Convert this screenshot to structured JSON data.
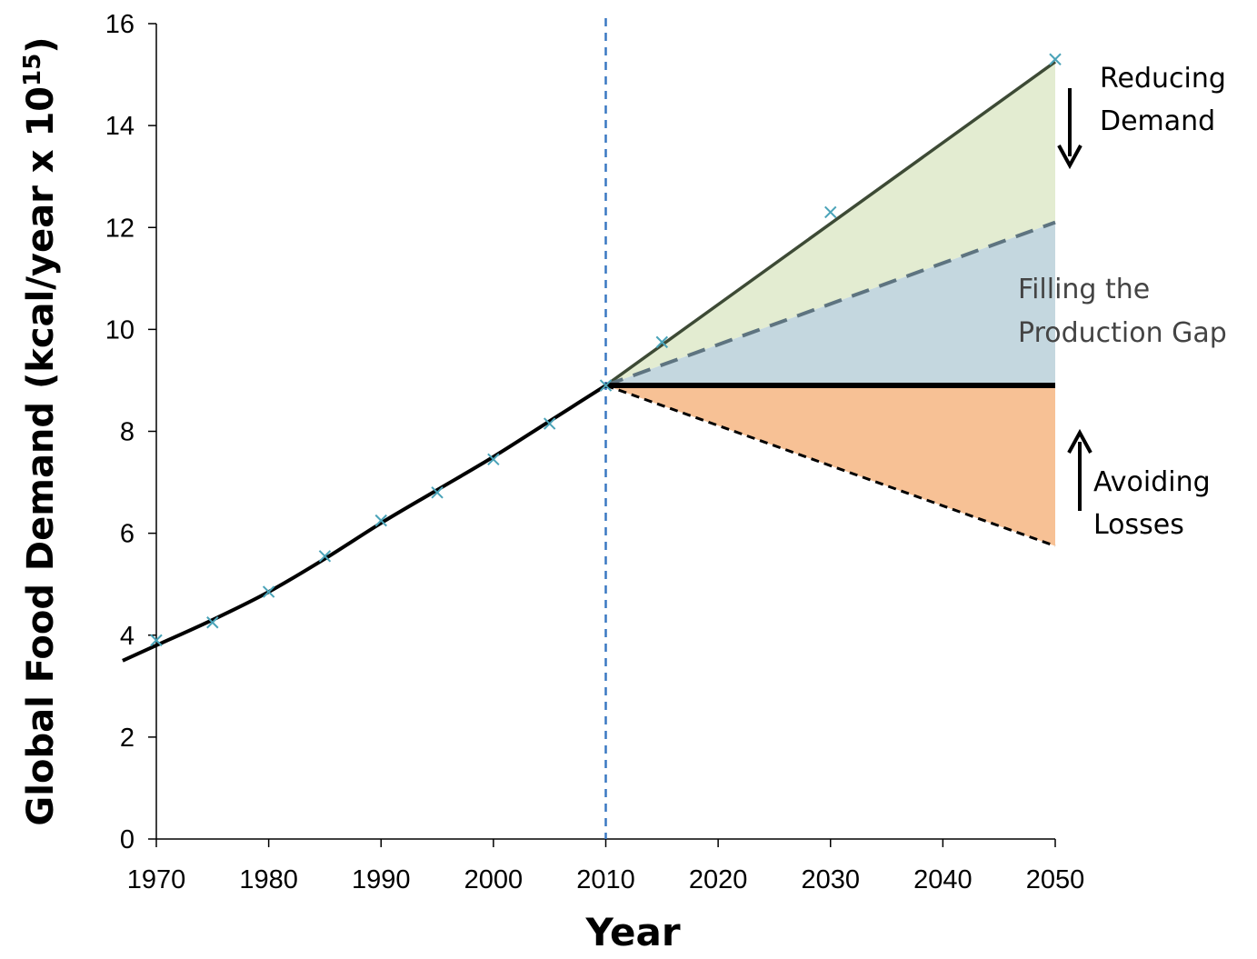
{
  "chart_data": {
    "type": "line",
    "xlabel": "Year",
    "ylabel": "Global Food Demand (kcal/year x 10",
    "ylabel_superscript": "15",
    "ylabel_close": ")",
    "xlim": [
      1970,
      2050
    ],
    "ylim": [
      0,
      16
    ],
    "xticks": [
      1970,
      1980,
      1990,
      2000,
      2010,
      2020,
      2030,
      2040,
      2050
    ],
    "yticks": [
      0,
      2,
      4,
      6,
      8,
      10,
      12,
      14,
      16
    ],
    "reference_line_x": 2010,
    "colors": {
      "trend": "#000000",
      "markers": "#4aa3b8",
      "reference": "#3a78c2",
      "reducing_demand_band": "#e3ecd1",
      "production_gap_band": "#c4d7df",
      "avoiding_losses_band": "#f7c195",
      "dashed_gap_line": "#5e7480",
      "demand_line": "#3d4a35"
    },
    "series": [
      {
        "x": [
          1967,
          1970,
          1975,
          1980,
          1985,
          1990,
          1995,
          2000,
          2005,
          2010
        ],
        "y": [
          3.5,
          3.8,
          4.3,
          4.85,
          5.5,
          6.2,
          6.85,
          7.5,
          8.2,
          8.9
        ]
      },
      {
        "x": [
          1970,
          1975,
          1980,
          1985,
          1990,
          1995,
          2000,
          2005,
          2010,
          2015,
          2030,
          2050
        ],
        "y": [
          3.9,
          4.25,
          4.85,
          5.55,
          6.25,
          6.8,
          7.45,
          8.15,
          8.9,
          9.75,
          12.3,
          15.3
        ]
      },
      {
        "x": [
          2010,
          2050
        ],
        "y": [
          8.9,
          15.25
        ]
      },
      {
        "x": [
          2010,
          2050
        ],
        "y": [
          8.9,
          12.1
        ]
      },
      {
        "x": [
          2010,
          2050
        ],
        "y": [
          8.9,
          8.9
        ]
      },
      {
        "x": [
          2010,
          2050
        ],
        "y": [
          8.9,
          5.75
        ]
      }
    ],
    "annotations": [
      {
        "lines": [
          "Reducing",
          "Demand"
        ],
        "arrow": "down"
      },
      {
        "lines": [
          "Filling the",
          "Production Gap"
        ]
      },
      {
        "lines": [
          "Avoiding",
          "Losses"
        ],
        "arrow": "up"
      }
    ]
  }
}
